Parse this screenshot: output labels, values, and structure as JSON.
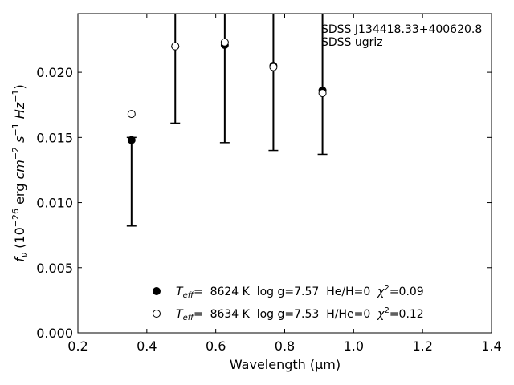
{
  "chart_data": {
    "type": "scatter",
    "title": "",
    "xlabel": "Wavelength (μm)",
    "ylabel": "fν (10⁻²⁶ erg cm⁻² s⁻¹ Hz⁻¹)",
    "xlim": [
      0.2,
      1.4
    ],
    "ylim": [
      0.0,
      0.0245
    ],
    "x_ticks": [
      "0.2",
      "0.4",
      "0.6",
      "0.8",
      "1.0",
      "1.2",
      "1.4"
    ],
    "y_ticks": [
      "0.000",
      "0.005",
      "0.010",
      "0.015",
      "0.020"
    ],
    "grid": false,
    "legend_position": "bottom-center",
    "annotation": [
      "SDSS J134418.33+400620.8",
      "SDSS ugriz"
    ],
    "observed": {
      "x": [
        0.3557,
        0.4825,
        0.6261,
        0.7672,
        0.9097
      ],
      "y": [
        0.0148,
        0.022,
        0.0221,
        0.0205,
        0.0186
      ],
      "err_low": [
        0.0082,
        0.0161,
        0.0146,
        0.014,
        0.0137
      ],
      "err_high": [
        0.015,
        0.029,
        0.029,
        0.029,
        0.029
      ]
    },
    "series": [
      {
        "name": "Teff=  8624 K  log g=7.57  He/H=0  χ²=0.09",
        "marker": "filled",
        "x": [
          0.3557,
          0.4825,
          0.6261,
          0.7672,
          0.9097
        ],
        "y": [
          0.0148,
          0.022,
          0.0221,
          0.0205,
          0.0186
        ]
      },
      {
        "name": "Teff=  8634 K  log g=7.53  H/He=0  χ²=0.12",
        "marker": "open",
        "x": [
          0.3557,
          0.4825,
          0.6261,
          0.7672,
          0.9097
        ],
        "y": [
          0.0168,
          0.022,
          0.0223,
          0.0204,
          0.0184
        ]
      }
    ],
    "legend": [
      {
        "teff_label": "T",
        "teff_sub": "eff",
        "rest": "=  8624 K  log g=7.57  He/H=0  ",
        "chi": "χ",
        "chi_sup": "2",
        "chi_val": "=0.09"
      },
      {
        "teff_label": "T",
        "teff_sub": "eff",
        "rest": "=  8634 K  log g=7.53  H/He=0  ",
        "chi": "χ",
        "chi_sup": "2",
        "chi_val": "=0.12"
      }
    ]
  }
}
